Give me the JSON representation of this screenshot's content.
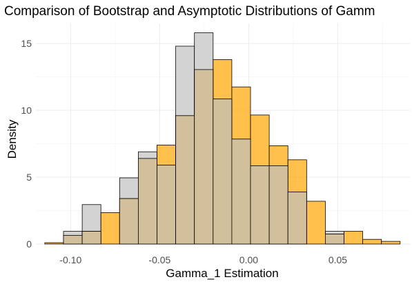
{
  "chart_data": {
    "type": "bar",
    "title": "Comparison of Bootstrap and Asymptotic Distributions of Gamm",
    "xlabel": "Gamma_1 Estimation",
    "ylabel": "Density",
    "x_ticks": [
      -0.1,
      -0.05,
      0.0,
      0.05
    ],
    "x_tick_labels": [
      "-0.10",
      "-0.05",
      "0.00",
      "0.05"
    ],
    "y_ticks": [
      0,
      5,
      10,
      15
    ],
    "y_tick_labels": [
      "0",
      "5",
      "10",
      "15"
    ],
    "xlim": [
      -0.1195,
      0.0905
    ],
    "ylim": [
      0,
      16.5
    ],
    "grid": true,
    "bin_width": 0.0105,
    "bins_start": -0.1145,
    "series": [
      {
        "color": "#D3D3D3",
        "values": [
          0,
          0.95,
          2.95,
          0,
          4.95,
          6.9,
          5.9,
          14.8,
          15.8,
          10.85,
          7.85,
          5.85,
          5.85,
          3.9,
          0,
          0.95,
          0,
          0,
          0
        ]
      },
      {
        "color": "#FFA500",
        "values": [
          0.1,
          0.65,
          0.95,
          2.35,
          3.4,
          6.4,
          7.4,
          9.6,
          13.05,
          13.8,
          11.75,
          9.65,
          7.35,
          6.3,
          3.2,
          0.75,
          0.95,
          0.35,
          0.2
        ]
      }
    ]
  }
}
